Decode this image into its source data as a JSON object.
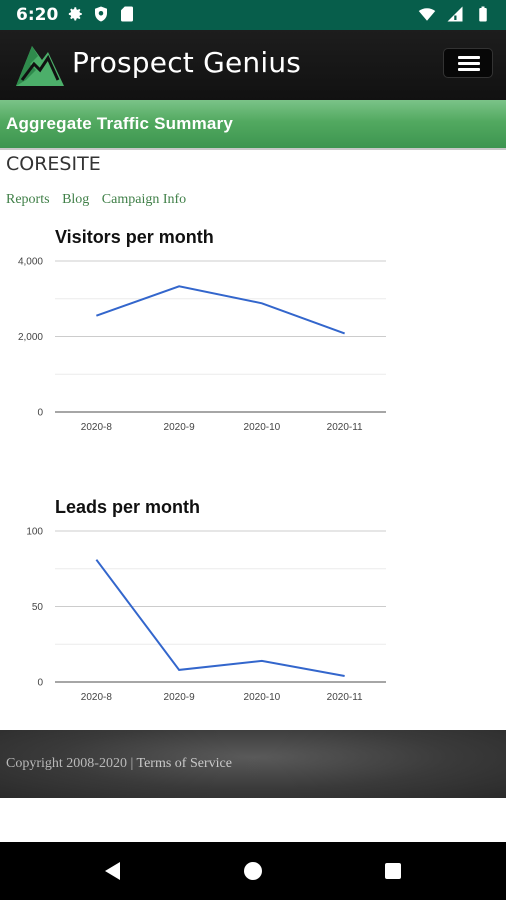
{
  "status_bar": {
    "time": "6:20",
    "icons_left": [
      "gear-icon",
      "shield-icon",
      "sim-card-icon"
    ],
    "icons_right": [
      "wifi-icon",
      "signal-icon",
      "battery-icon"
    ]
  },
  "header": {
    "brand": "Prospect Genius",
    "logo_icon": "mountain-logo",
    "menu_icon": "hamburger-menu-icon"
  },
  "title_bar": {
    "title": "Aggregate Traffic Summary"
  },
  "site": {
    "name": "CORESITE"
  },
  "nav_links": [
    {
      "label": "Reports"
    },
    {
      "label": "Blog"
    },
    {
      "label": "Campaign Info"
    }
  ],
  "chart_data": [
    {
      "type": "line",
      "title": "Visitors per month",
      "categories": [
        "2020-8",
        "2020-9",
        "2020-10",
        "2020-11"
      ],
      "series": [
        {
          "values": [
            2550,
            3330,
            2880,
            2080
          ]
        }
      ],
      "ylim": [
        0,
        4000
      ],
      "yticks": [
        "0",
        "2,000",
        "4,000"
      ],
      "grid": true,
      "color": "#3366cc"
    },
    {
      "type": "line",
      "title": "Leads per month",
      "categories": [
        "2020-8",
        "2020-9",
        "2020-10",
        "2020-11"
      ],
      "series": [
        {
          "values": [
            81,
            8,
            14,
            4
          ]
        }
      ],
      "ylim": [
        0,
        100
      ],
      "yticks": [
        "0",
        "50",
        "100"
      ],
      "grid": true,
      "color": "#3366cc"
    }
  ],
  "footer": {
    "copyright": "Copyright 2008-2020 | ",
    "terms": "Terms of Service"
  },
  "android_nav": [
    "back-icon",
    "home-icon",
    "recents-icon"
  ]
}
